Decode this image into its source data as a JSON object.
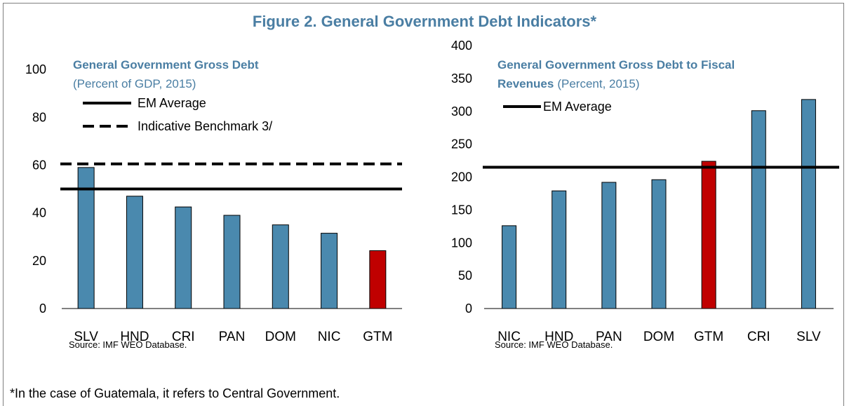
{
  "figure": {
    "title": "Figure 2. General Government Debt Indicators*",
    "footnote": "*In the case of Guatemala, it refers to Central Government."
  },
  "colors": {
    "bar": "#4a89ae",
    "highlight": "#c00000",
    "title": "#4a7ea3",
    "line": "#000000"
  },
  "chart_data": [
    {
      "type": "bar",
      "title": "General Government Gross Debt",
      "subtitle": "(Percent of GDP, 2015)",
      "categories": [
        "SLV",
        "HND",
        "CRI",
        "PAN",
        "DOM",
        "NIC",
        "GTM"
      ],
      "values": [
        59,
        47,
        42.5,
        39,
        35,
        31.5,
        24.2
      ],
      "highlight": [
        "GTM"
      ],
      "ylim": [
        0,
        110
      ],
      "yticks": [
        0,
        20,
        40,
        60,
        80,
        100
      ],
      "reference_lines": [
        {
          "label": "EM Average",
          "value": 50,
          "style": "solid"
        },
        {
          "label": "Indicative Benchmark 3/",
          "value": 60.5,
          "style": "dashed"
        }
      ],
      "legend_position": "top-left",
      "source": "Source: IMF WEO Database."
    },
    {
      "type": "bar",
      "title": "General Government Gross Debt to Fiscal",
      "title_line2": "Revenues",
      "subtitle": "(Percent, 2015)",
      "categories": [
        "NIC",
        "HND",
        "PAN",
        "DOM",
        "GTM",
        "CRI",
        "SLV"
      ],
      "values": [
        126,
        179,
        192,
        196,
        224,
        301,
        318
      ],
      "highlight": [
        "GTM"
      ],
      "ylim": [
        0,
        400
      ],
      "yticks": [
        0,
        50,
        100,
        150,
        200,
        250,
        300,
        350,
        400
      ],
      "reference_lines": [
        {
          "label": "EM Average",
          "value": 215,
          "style": "solid"
        }
      ],
      "legend_position": "top-left",
      "source": "Source: IMF WEO Database."
    }
  ]
}
